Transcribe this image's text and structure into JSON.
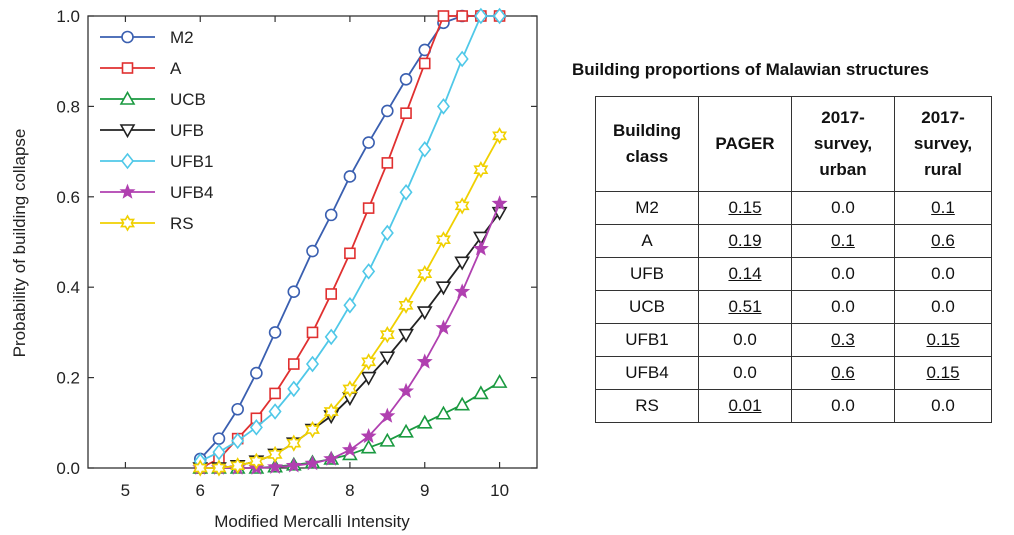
{
  "chart_data": {
    "type": "line",
    "xlabel": "Modified Mercalli Intensity",
    "ylabel": "Probability of building collapse",
    "xlim": [
      4.5,
      10.5
    ],
    "ylim": [
      0,
      1.0
    ],
    "xticks": [
      "5",
      "6",
      "7",
      "8",
      "9",
      "10"
    ],
    "yticks": [
      "0.0",
      "0.2",
      "0.4",
      "0.6",
      "0.8",
      "1.0"
    ],
    "legend_position": "top-left",
    "grid": false,
    "x": [
      6.0,
      6.25,
      6.5,
      6.75,
      7.0,
      7.25,
      7.5,
      7.75,
      8.0,
      8.25,
      8.5,
      8.75,
      9.0,
      9.25,
      9.5,
      9.75,
      10.0
    ],
    "series": [
      {
        "name": "M2",
        "color": "#3a5fb0",
        "marker": "circle",
        "values": [
          0.02,
          0.065,
          0.13,
          0.21,
          0.3,
          0.39,
          0.48,
          0.56,
          0.645,
          0.72,
          0.79,
          0.86,
          0.925,
          0.985,
          1.0,
          1.0,
          1.0
        ]
      },
      {
        "name": "A",
        "color": "#e03030",
        "marker": "square",
        "values": [
          0.0,
          0.02,
          0.065,
          0.11,
          0.165,
          0.23,
          0.3,
          0.385,
          0.475,
          0.575,
          0.675,
          0.785,
          0.895,
          1.0,
          1.0,
          1.0,
          1.0
        ]
      },
      {
        "name": "UCB",
        "color": "#1a9a40",
        "marker": "triangle-up",
        "values": [
          0.0,
          0.0,
          0.0,
          0.0,
          0.003,
          0.007,
          0.012,
          0.02,
          0.03,
          0.045,
          0.06,
          0.08,
          0.1,
          0.12,
          0.14,
          0.165,
          0.19
        ]
      },
      {
        "name": "UFB",
        "color": "#222222",
        "marker": "triangle-down",
        "values": [
          0.0,
          0.0,
          0.005,
          0.015,
          0.03,
          0.055,
          0.085,
          0.115,
          0.155,
          0.2,
          0.245,
          0.295,
          0.345,
          0.4,
          0.455,
          0.51,
          0.565
        ]
      },
      {
        "name": "UFB1",
        "color": "#4fc8e8",
        "marker": "diamond",
        "values": [
          0.015,
          0.035,
          0.06,
          0.09,
          0.125,
          0.175,
          0.23,
          0.29,
          0.36,
          0.435,
          0.52,
          0.61,
          0.705,
          0.8,
          0.905,
          1.0,
          1.0
        ]
      },
      {
        "name": "UFB4",
        "color": "#b040b0",
        "marker": "star",
        "values": [
          0.0,
          0.0,
          0.0,
          0.0,
          0.002,
          0.005,
          0.01,
          0.02,
          0.04,
          0.07,
          0.115,
          0.17,
          0.235,
          0.31,
          0.39,
          0.485,
          0.585
        ]
      },
      {
        "name": "RS",
        "color": "#f0d000",
        "marker": "hexagram",
        "values": [
          0.0,
          0.0,
          0.005,
          0.015,
          0.03,
          0.055,
          0.085,
          0.125,
          0.175,
          0.235,
          0.295,
          0.36,
          0.43,
          0.505,
          0.58,
          0.66,
          0.735
        ]
      }
    ]
  },
  "table": {
    "title": "Building proportions of Malawian structures",
    "headers": [
      "Building class",
      "PAGER",
      "2017-survey, urban",
      "2017-survey, rural"
    ],
    "header_lines": [
      [
        "Building",
        "class"
      ],
      [
        "PAGER"
      ],
      [
        "2017-",
        "survey,",
        "urban"
      ],
      [
        "2017-",
        "survey,",
        "rural"
      ]
    ],
    "rows": [
      {
        "class": "M2",
        "values": [
          "0.15",
          "0.0",
          "0.1"
        ],
        "underlined": [
          true,
          false,
          true
        ]
      },
      {
        "class": "A",
        "values": [
          "0.19",
          "0.1",
          "0.6"
        ],
        "underlined": [
          true,
          true,
          true
        ]
      },
      {
        "class": "UFB",
        "values": [
          "0.14",
          "0.0",
          "0.0"
        ],
        "underlined": [
          true,
          false,
          false
        ]
      },
      {
        "class": "UCB",
        "values": [
          "0.51",
          "0.0",
          "0.0"
        ],
        "underlined": [
          true,
          false,
          false
        ]
      },
      {
        "class": "UFB1",
        "values": [
          "0.0",
          "0.3",
          "0.15"
        ],
        "underlined": [
          false,
          true,
          true
        ]
      },
      {
        "class": "UFB4",
        "values": [
          "0.0",
          "0.6",
          "0.15"
        ],
        "underlined": [
          false,
          true,
          true
        ]
      },
      {
        "class": "RS",
        "values": [
          "0.01",
          "0.0",
          "0.0"
        ],
        "underlined": [
          true,
          false,
          false
        ]
      }
    ]
  }
}
